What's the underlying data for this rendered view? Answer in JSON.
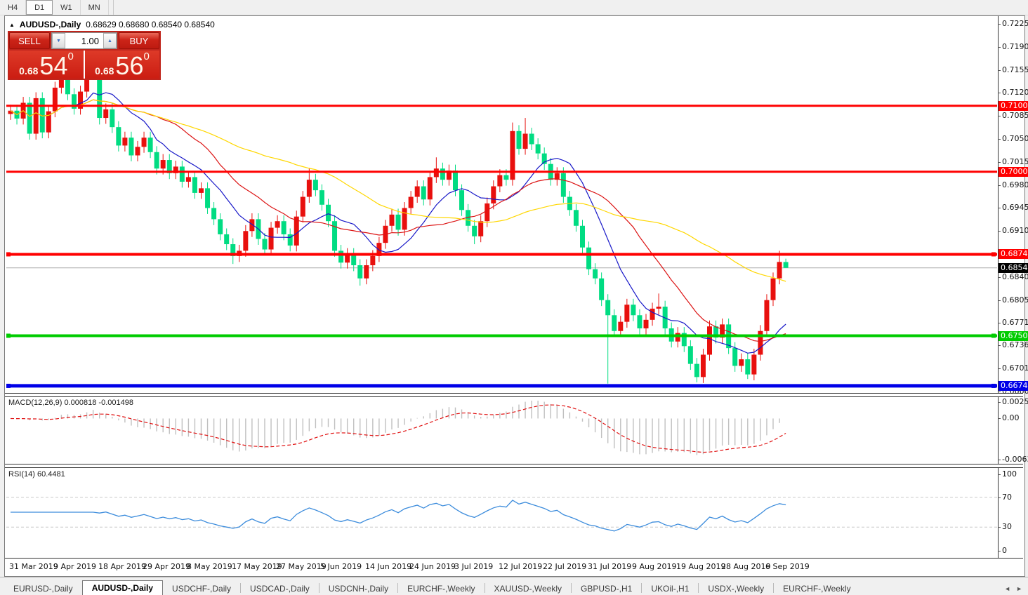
{
  "toolbar": {
    "timeframes": [
      {
        "label": "H4",
        "active": false
      },
      {
        "label": "D1",
        "active": true
      },
      {
        "label": "W1",
        "active": false
      },
      {
        "label": "MN",
        "active": false
      }
    ]
  },
  "chart_header": {
    "collapse_arrow": "▲",
    "symbol": "AUDUSD-,Daily",
    "ohlc_text": "0.68629 0.68680 0.68540 0.68540"
  },
  "trade_panel": {
    "sell_label": "SELL",
    "buy_label": "BUY",
    "volume": "1.00",
    "spin_down_icon": "▼",
    "spin_up_icon": "▲",
    "sell_quote": {
      "base": "0.68",
      "big": "54",
      "sup": "0"
    },
    "buy_quote": {
      "base": "0.68",
      "big": "56",
      "sup": "0"
    }
  },
  "chart_data": {
    "type": "candlestick",
    "symbol": "AUDUSD-,Daily",
    "timeframe": "Daily",
    "bull_color": "#e8100e",
    "bear_color": "#00dc82",
    "x_tick_labels": [
      "31 Mar 2019",
      "9 Apr 2019",
      "18 Apr 2019",
      "29 Apr 2019",
      "8 May 2019",
      "17 May 2019",
      "27 May 2019",
      "5 Jun 2019",
      "14 Jun 2019",
      "24 Jun 2019",
      "3 Jul 2019",
      "12 Jul 2019",
      "22 Jul 2019",
      "31 Jul 2019",
      "9 Aug 2019",
      "19 Aug 2019",
      "28 Aug 2019",
      "6 Sep 2019"
    ],
    "bars_per_tick": 7,
    "price_axis_ticks": [
      "0.72250",
      "0.71900",
      "0.71550",
      "0.71200",
      "0.70850",
      "0.70500",
      "0.70150",
      "0.69800",
      "0.69450",
      "0.69100",
      "0.68400",
      "0.68050",
      "0.67710",
      "0.67360",
      "0.67010",
      "0.66660"
    ],
    "price_axis_values": [
      0.7225,
      0.719,
      0.7155,
      0.712,
      0.7085,
      0.705,
      0.7015,
      0.698,
      0.6945,
      0.691,
      0.684,
      0.6805,
      0.6771,
      0.6736,
      0.6701,
      0.6666
    ],
    "current_price": 0.6854,
    "current_price_label": "0.68540",
    "last_bar_ohlc": {
      "open": 0.68629,
      "high": 0.6868,
      "low": 0.6854,
      "close": 0.6854
    },
    "horizontal_lines": [
      {
        "label": "0.71005",
        "value": 0.71005,
        "color": "#ff0000",
        "width": 3,
        "handles": false
      },
      {
        "label": "0.70002",
        "value": 0.70002,
        "color": "#ff0000",
        "width": 3,
        "handles": false
      },
      {
        "label": "0.68746",
        "value": 0.68746,
        "color": "#ff0000",
        "width": 4,
        "handles": true
      },
      {
        "label": "0.67508",
        "value": 0.67508,
        "color": "#00cc00",
        "width": 4,
        "handles": true
      },
      {
        "label": "0.66746",
        "value": 0.66746,
        "color": "#0000e8",
        "width": 5,
        "handles": true
      }
    ],
    "moving_averages": [
      {
        "name": "MA fast",
        "period": 10,
        "color": "#1818c8"
      },
      {
        "name": "MA mid",
        "period": 20,
        "color": "#dc1414"
      },
      {
        "name": "MA slow",
        "period": 45,
        "color": "#ffd700"
      }
    ],
    "macd": {
      "label": "MACD(12,26,9)",
      "value_main": "0.000818",
      "value_signal": "-0.001498",
      "axis_labels": [
        "0.002574",
        "0.00",
        "-0.006326"
      ],
      "axis_max": 0.002574,
      "axis_min": -0.006326,
      "histogram_color": "#c0c0c0",
      "signal_color": "#e01010"
    },
    "rsi": {
      "label": "RSI(14)",
      "value": "60.4481",
      "axis_labels": [
        "100",
        "70",
        "30",
        "0"
      ],
      "levels": [
        70,
        30
      ],
      "line_color": "#3c8cdc",
      "level_color": "#c8c8c8"
    },
    "candles_ohlc": [
      [
        0.7088,
        0.7102,
        0.7079,
        0.7093
      ],
      [
        0.7093,
        0.7102,
        0.7072,
        0.7081
      ],
      [
        0.7081,
        0.7114,
        0.7072,
        0.7105
      ],
      [
        0.7105,
        0.7114,
        0.7049,
        0.7058
      ],
      [
        0.7058,
        0.7121,
        0.7049,
        0.7112
      ],
      [
        0.7112,
        0.7121,
        0.7051,
        0.706
      ],
      [
        0.706,
        0.7101,
        0.7051,
        0.7092
      ],
      [
        0.7092,
        0.7137,
        0.7083,
        0.7128
      ],
      [
        0.7128,
        0.7161,
        0.7119,
        0.7152
      ],
      [
        0.7152,
        0.7161,
        0.7109,
        0.7118
      ],
      [
        0.7118,
        0.7127,
        0.7087,
        0.7096
      ],
      [
        0.7096,
        0.7131,
        0.7087,
        0.7122
      ],
      [
        0.7122,
        0.7159,
        0.7113,
        0.715
      ],
      [
        0.715,
        0.7185,
        0.7141,
        0.7168
      ],
      [
        0.7168,
        0.7172,
        0.7072,
        0.7082
      ],
      [
        0.7082,
        0.7104,
        0.7073,
        0.7095
      ],
      [
        0.7095,
        0.7104,
        0.7059,
        0.7068
      ],
      [
        0.7068,
        0.7077,
        0.7031,
        0.704
      ],
      [
        0.704,
        0.7061,
        0.7031,
        0.7052
      ],
      [
        0.7052,
        0.7061,
        0.7016,
        0.7025
      ],
      [
        0.7025,
        0.7047,
        0.7016,
        0.7038
      ],
      [
        0.7038,
        0.7061,
        0.7029,
        0.7052
      ],
      [
        0.7052,
        0.7061,
        0.7021,
        0.703
      ],
      [
        0.703,
        0.7039,
        0.6996,
        0.7005
      ],
      [
        0.7005,
        0.7027,
        0.6996,
        0.7018
      ],
      [
        0.7018,
        0.7027,
        0.6989,
        0.6998
      ],
      [
        0.6998,
        0.7017,
        0.6989,
        0.7008
      ],
      [
        0.7008,
        0.7017,
        0.6976,
        0.6985
      ],
      [
        0.6985,
        0.7001,
        0.6976,
        0.6992
      ],
      [
        0.6992,
        0.7001,
        0.6959,
        0.6968
      ],
      [
        0.6968,
        0.6984,
        0.6959,
        0.6975
      ],
      [
        0.6975,
        0.6984,
        0.6936,
        0.6945
      ],
      [
        0.6945,
        0.6954,
        0.6919,
        0.6928
      ],
      [
        0.6928,
        0.6937,
        0.6896,
        0.6905
      ],
      [
        0.6905,
        0.6914,
        0.6881,
        0.689
      ],
      [
        0.689,
        0.6899,
        0.686,
        0.6872
      ],
      [
        0.6872,
        0.6889,
        0.6863,
        0.688
      ],
      [
        0.688,
        0.6919,
        0.6871,
        0.691
      ],
      [
        0.691,
        0.6937,
        0.6901,
        0.6928
      ],
      [
        0.6928,
        0.6937,
        0.6889,
        0.6898
      ],
      [
        0.6898,
        0.6907,
        0.6873,
        0.6882
      ],
      [
        0.6882,
        0.6924,
        0.6873,
        0.6915
      ],
      [
        0.6915,
        0.6934,
        0.6906,
        0.6925
      ],
      [
        0.6925,
        0.6934,
        0.6896,
        0.6905
      ],
      [
        0.6905,
        0.6914,
        0.6879,
        0.6888
      ],
      [
        0.6888,
        0.6941,
        0.6879,
        0.6932
      ],
      [
        0.6932,
        0.6971,
        0.6923,
        0.6962
      ],
      [
        0.6962,
        0.7005,
        0.6953,
        0.6988
      ],
      [
        0.6988,
        0.6997,
        0.6963,
        0.6972
      ],
      [
        0.6972,
        0.6981,
        0.6941,
        0.695
      ],
      [
        0.695,
        0.6959,
        0.6916,
        0.6925
      ],
      [
        0.6925,
        0.6934,
        0.6871,
        0.688
      ],
      [
        0.688,
        0.6889,
        0.6853,
        0.6862
      ],
      [
        0.6862,
        0.6884,
        0.6853,
        0.6875
      ],
      [
        0.6875,
        0.6884,
        0.6849,
        0.6858
      ],
      [
        0.6858,
        0.6867,
        0.6827,
        0.6838
      ],
      [
        0.6838,
        0.6867,
        0.6829,
        0.6858
      ],
      [
        0.6858,
        0.6881,
        0.6849,
        0.6872
      ],
      [
        0.6872,
        0.6901,
        0.6863,
        0.6892
      ],
      [
        0.6892,
        0.6927,
        0.6883,
        0.6918
      ],
      [
        0.6918,
        0.6944,
        0.6909,
        0.6935
      ],
      [
        0.6935,
        0.6944,
        0.6903,
        0.6912
      ],
      [
        0.6912,
        0.6954,
        0.6903,
        0.6945
      ],
      [
        0.6945,
        0.6971,
        0.6936,
        0.6962
      ],
      [
        0.6962,
        0.6987,
        0.6953,
        0.6978
      ],
      [
        0.6978,
        0.6987,
        0.6949,
        0.6958
      ],
      [
        0.6958,
        0.7001,
        0.6949,
        0.6992
      ],
      [
        0.6992,
        0.7022,
        0.6983,
        0.7005
      ],
      [
        0.7005,
        0.7014,
        0.6979,
        0.6988
      ],
      [
        0.6988,
        0.7011,
        0.6979,
        0.7002
      ],
      [
        0.7002,
        0.7011,
        0.6963,
        0.6972
      ],
      [
        0.6972,
        0.6981,
        0.6933,
        0.6942
      ],
      [
        0.6942,
        0.6951,
        0.6909,
        0.6918
      ],
      [
        0.6918,
        0.6927,
        0.689,
        0.6902
      ],
      [
        0.6902,
        0.6934,
        0.6893,
        0.6925
      ],
      [
        0.6925,
        0.6961,
        0.6916,
        0.6952
      ],
      [
        0.6952,
        0.6987,
        0.6943,
        0.6978
      ],
      [
        0.6978,
        0.7004,
        0.6969,
        0.6995
      ],
      [
        0.6995,
        0.7004,
        0.6979,
        0.6988
      ],
      [
        0.6988,
        0.7075,
        0.6979,
        0.7062
      ],
      [
        0.7062,
        0.7071,
        0.7026,
        0.7035
      ],
      [
        0.7035,
        0.7082,
        0.7026,
        0.7058
      ],
      [
        0.7058,
        0.7067,
        0.7033,
        0.7042
      ],
      [
        0.7042,
        0.7051,
        0.7019,
        0.7028
      ],
      [
        0.7028,
        0.7037,
        0.7003,
        0.7012
      ],
      [
        0.7012,
        0.7021,
        0.6979,
        0.6988
      ],
      [
        0.6988,
        0.7007,
        0.6979,
        0.6998
      ],
      [
        0.6998,
        0.7007,
        0.6953,
        0.6962
      ],
      [
        0.6962,
        0.6971,
        0.6933,
        0.6942
      ],
      [
        0.6942,
        0.6951,
        0.6909,
        0.6918
      ],
      [
        0.6918,
        0.6927,
        0.6876,
        0.6885
      ],
      [
        0.6885,
        0.6894,
        0.6843,
        0.6852
      ],
      [
        0.6852,
        0.6861,
        0.6829,
        0.6838
      ],
      [
        0.6838,
        0.6847,
        0.6796,
        0.6805
      ],
      [
        0.6805,
        0.6814,
        0.6678,
        0.6782
      ],
      [
        0.6782,
        0.6791,
        0.6749,
        0.6758
      ],
      [
        0.6758,
        0.6781,
        0.6749,
        0.6772
      ],
      [
        0.6772,
        0.6807,
        0.6763,
        0.6798
      ],
      [
        0.6798,
        0.6807,
        0.6773,
        0.6782
      ],
      [
        0.6782,
        0.6791,
        0.6753,
        0.6762
      ],
      [
        0.6762,
        0.6784,
        0.6753,
        0.6775
      ],
      [
        0.6775,
        0.6801,
        0.6766,
        0.6792
      ],
      [
        0.6792,
        0.6815,
        0.6783,
        0.6795
      ],
      [
        0.6795,
        0.6804,
        0.6753,
        0.6762
      ],
      [
        0.6762,
        0.6771,
        0.6733,
        0.6742
      ],
      [
        0.6742,
        0.6764,
        0.6733,
        0.6755
      ],
      [
        0.6755,
        0.6764,
        0.6726,
        0.6735
      ],
      [
        0.6735,
        0.6744,
        0.6699,
        0.6708
      ],
      [
        0.6708,
        0.6717,
        0.668,
        0.6688
      ],
      [
        0.6688,
        0.6731,
        0.6679,
        0.6722
      ],
      [
        0.6722,
        0.6774,
        0.6713,
        0.6765
      ],
      [
        0.6765,
        0.6774,
        0.6739,
        0.6748
      ],
      [
        0.6748,
        0.6777,
        0.6739,
        0.6768
      ],
      [
        0.6768,
        0.6777,
        0.6723,
        0.6732
      ],
      [
        0.6732,
        0.6741,
        0.6696,
        0.6705
      ],
      [
        0.6705,
        0.6724,
        0.6696,
        0.6715
      ],
      [
        0.6715,
        0.6724,
        0.6685,
        0.6692
      ],
      [
        0.6692,
        0.6731,
        0.6683,
        0.6722
      ],
      [
        0.6722,
        0.6767,
        0.6713,
        0.6758
      ],
      [
        0.6758,
        0.6814,
        0.6749,
        0.6805
      ],
      [
        0.6805,
        0.6847,
        0.6796,
        0.6838
      ],
      [
        0.6838,
        0.688,
        0.6829,
        0.6863
      ],
      [
        0.68629,
        0.6868,
        0.6854,
        0.6854
      ]
    ]
  },
  "tab_bar": {
    "tabs": [
      {
        "label": "EURUSD-,Daily",
        "active": false
      },
      {
        "label": "AUDUSD-,Daily",
        "active": true
      },
      {
        "label": "USDCHF-,Daily",
        "active": false
      },
      {
        "label": "USDCAD-,Daily",
        "active": false
      },
      {
        "label": "USDCNH-,Daily",
        "active": false
      },
      {
        "label": "EURCHF-,Weekly",
        "active": false
      },
      {
        "label": "XAUUSD-,Weekly",
        "active": false
      },
      {
        "label": "GBPUSD-,H1",
        "active": false
      },
      {
        "label": "UKOil-,H1",
        "active": false
      },
      {
        "label": "USDX-,Weekly",
        "active": false
      },
      {
        "label": "EURCHF-,Weekly",
        "active": false
      }
    ],
    "scroll_left_icon": "◄",
    "scroll_right_icon": "►"
  }
}
